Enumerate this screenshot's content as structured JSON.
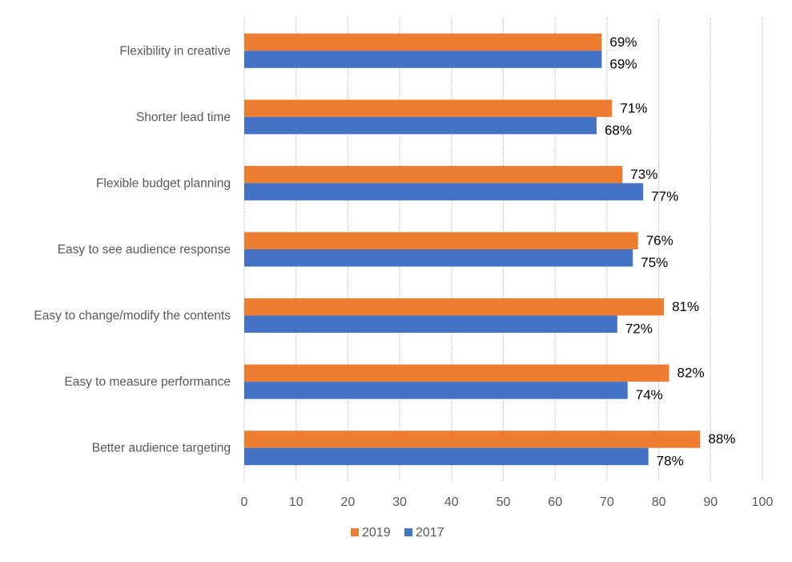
{
  "chart_data": {
    "type": "bar",
    "orientation": "horizontal",
    "title": "",
    "xlabel": "",
    "ylabel": "",
    "categories": [
      "Flexibility in creative",
      "Shorter lead time",
      "Flexible budget planning",
      "Easy to see audience response",
      "Easy to change/modify the contents",
      "Easy to measure performance",
      "Better audience targeting"
    ],
    "series": [
      {
        "name": "2019",
        "color": "#ED7D31",
        "values": [
          69,
          71,
          73,
          76,
          81,
          82,
          88
        ],
        "labels": [
          "69%",
          "71%",
          "73%",
          "76%",
          "81%",
          "82%",
          "88%"
        ]
      },
      {
        "name": "2017",
        "color": "#4472C4",
        "values": [
          69,
          68,
          77,
          75,
          72,
          74,
          78
        ],
        "labels": [
          "69%",
          "68%",
          "77%",
          "75%",
          "72%",
          "74%",
          "78%"
        ]
      }
    ],
    "xlim": [
      0,
      100
    ],
    "xticks": [
      "0",
      "10",
      "20",
      "30",
      "40",
      "50",
      "60",
      "70",
      "80",
      "90",
      "100"
    ],
    "grid": true,
    "legend_position": "bottom"
  }
}
